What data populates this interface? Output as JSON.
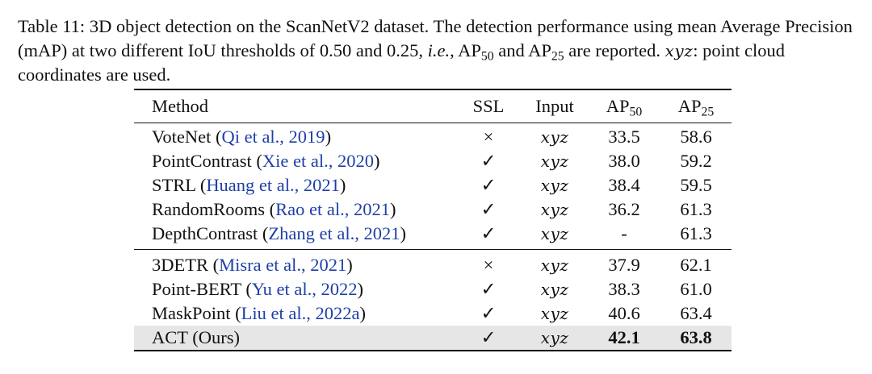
{
  "caption": {
    "part1": "Table 11: 3D object detection on the ScanNetV2 dataset. The detection performance using mean Average Precision (mAP) at two different IoU thresholds of 0.50 and 0.25, ",
    "ie": "i.e.",
    "part2": ", AP",
    "sub50": "50",
    "part3": " and AP",
    "sub25": "25",
    "part4": " are reported. ",
    "xyz": "xyz",
    "part5": ": point cloud coordinates are used."
  },
  "table": {
    "headers": {
      "method": "Method",
      "ssl": "SSL",
      "input": "Input",
      "ap": "AP",
      "sub50": "50",
      "sub25": "25"
    },
    "group1": [
      {
        "name": "VoteNet",
        "cite": "Qi et al., 2019",
        "ssl": "×",
        "input": "xyz",
        "ap50": "33.5",
        "ap25": "58.6"
      },
      {
        "name": "PointContrast",
        "cite": "Xie et al., 2020",
        "ssl": "✓",
        "input": "xyz",
        "ap50": "38.0",
        "ap25": "59.2"
      },
      {
        "name": "STRL",
        "cite": "Huang et al., 2021",
        "ssl": "✓",
        "input": "xyz",
        "ap50": "38.4",
        "ap25": "59.5"
      },
      {
        "name": "RandomRooms",
        "cite": "Rao et al., 2021",
        "ssl": "✓",
        "input": "xyz",
        "ap50": "36.2",
        "ap25": "61.3"
      },
      {
        "name": "DepthContrast",
        "cite": "Zhang et al., 2021",
        "ssl": "✓",
        "input": "xyz",
        "ap50": "-",
        "ap25": "61.3"
      }
    ],
    "group2": [
      {
        "name": "3DETR",
        "cite": "Misra et al., 2021",
        "ssl": "×",
        "input": "xyz",
        "ap50": "37.9",
        "ap25": "62.1"
      },
      {
        "name": "Point-BERT",
        "cite": "Yu et al., 2022",
        "ssl": "✓",
        "input": "xyz",
        "ap50": "38.3",
        "ap25": "61.0"
      },
      {
        "name": "MaskPoint",
        "cite": "Liu et al., 2022a",
        "ssl": "✓",
        "input": "xyz",
        "ap50": "40.6",
        "ap25": "63.4"
      }
    ],
    "ours": {
      "name": "ACT (Ours)",
      "ssl": "✓",
      "input": "xyz",
      "ap50": "42.1",
      "ap25": "63.8"
    }
  },
  "colors": {
    "citation": "#1f3fa8",
    "highlight_row": "#e6e6e6"
  }
}
